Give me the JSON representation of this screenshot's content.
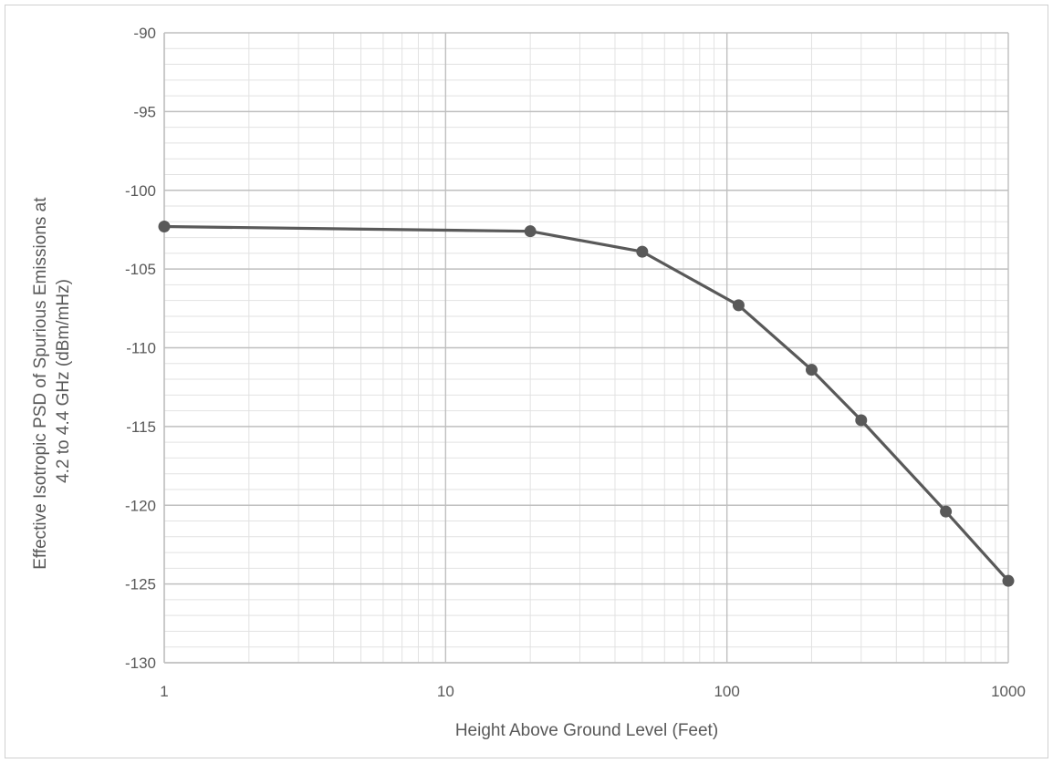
{
  "chart_data": {
    "type": "line",
    "title": "",
    "xlabel": "Height Above Ground Level (Feet)",
    "ylabel_lines": [
      "Effective Isotropic PSD of Spurious Emissions at",
      "4.2 to 4.4 GHz (dBm/mHz)"
    ],
    "x_scale": "log",
    "xlim": [
      1,
      1000
    ],
    "ylim": [
      -130,
      -90
    ],
    "x_ticks": [
      1,
      10,
      100,
      1000
    ],
    "x_tick_labels": [
      "1",
      "10",
      "100",
      "1000"
    ],
    "y_ticks": [
      -90,
      -95,
      -100,
      -105,
      -110,
      -115,
      -120,
      -125,
      -130
    ],
    "y_tick_labels": [
      "-90",
      "-95",
      "-100",
      "-105",
      "-110",
      "-115",
      "-120",
      "-125",
      "-130"
    ],
    "grid": true,
    "legend": "none",
    "series": [
      {
        "x": [
          1,
          20,
          50,
          110,
          200,
          300,
          600,
          1000
        ],
        "y": [
          -102.3,
          -102.6,
          -103.9,
          -107.3,
          -111.4,
          -114.6,
          -120.4,
          -124.8
        ],
        "color": "#595959",
        "marker": "circle"
      }
    ]
  }
}
